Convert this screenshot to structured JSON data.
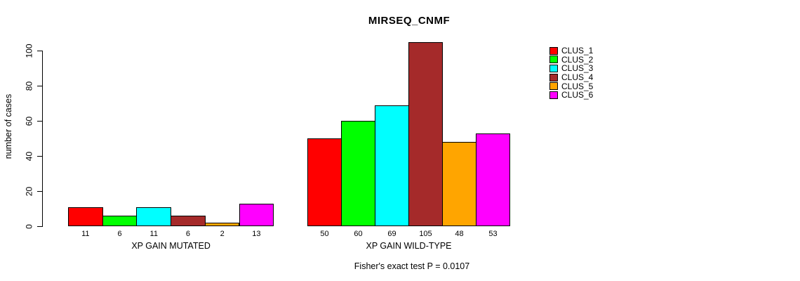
{
  "chart_data": {
    "type": "bar",
    "title": "MIRSEQ_CNMF",
    "xlabel": "",
    "ylabel": "number of cases",
    "ylim": [
      0,
      100
    ],
    "yticks": [
      0,
      20,
      40,
      60,
      80,
      100
    ],
    "grid": false,
    "legend_position": "right",
    "categories": [
      "XP GAIN MUTATED",
      "XP GAIN WILD-TYPE"
    ],
    "series": [
      {
        "name": "CLUS_1",
        "color": "#FF0000",
        "values": [
          11,
          50
        ]
      },
      {
        "name": "CLUS_2",
        "color": "#00FF00",
        "values": [
          6,
          60
        ]
      },
      {
        "name": "CLUS_3",
        "color": "#00FFFF",
        "values": [
          11,
          69
        ]
      },
      {
        "name": "CLUS_4",
        "color": "#A52A2A",
        "values": [
          6,
          105
        ]
      },
      {
        "name": "CLUS_5",
        "color": "#FFA500",
        "values": [
          2,
          48
        ]
      },
      {
        "name": "CLUS_6",
        "color": "#FF00FF",
        "values": [
          13,
          53
        ]
      }
    ],
    "bar_value_labels": true,
    "annotation": "Fisher's exact test P = 0.0107"
  }
}
